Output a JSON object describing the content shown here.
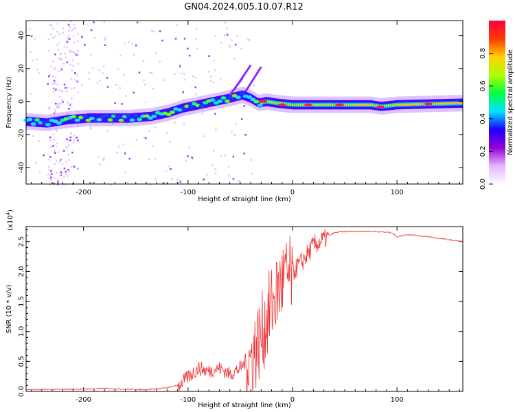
{
  "title": "GN04.2024.005.10.07.R12",
  "chart_data": [
    {
      "type": "heatmap",
      "xlabel": "Height of straight line (km)",
      "ylabel": "Frequency (Hz)",
      "xlim": [
        -255,
        163
      ],
      "ylim": [
        -50,
        49
      ],
      "xticks": [
        -200,
        -100,
        0,
        100
      ],
      "yticks": [
        -40,
        -20,
        0,
        20,
        40
      ],
      "colorbar": {
        "label": "Normalized spectral amplitude",
        "ticks": [
          "0.0",
          "0.2",
          "0.4",
          "0.6",
          "0.8"
        ],
        "colors": [
          "#ffffff",
          "#e6b3ff",
          "#9400d3",
          "#1a00ff",
          "#00e5ff",
          "#00ff40",
          "#b0ff00",
          "#ffd000",
          "#ff3a00",
          "#ff0040"
        ]
      },
      "ridge": [
        {
          "x": -255,
          "y": -12
        },
        {
          "x": -235,
          "y": -13
        },
        {
          "x": -215,
          "y": -11
        },
        {
          "x": -195,
          "y": -10
        },
        {
          "x": -175,
          "y": -10
        },
        {
          "x": -155,
          "y": -10
        },
        {
          "x": -135,
          "y": -9
        },
        {
          "x": -120,
          "y": -7
        },
        {
          "x": -105,
          "y": -4
        },
        {
          "x": -90,
          "y": -2
        },
        {
          "x": -75,
          "y": 0
        },
        {
          "x": -60,
          "y": 2
        },
        {
          "x": -48,
          "y": 4
        },
        {
          "x": -40,
          "y": 2
        },
        {
          "x": -32,
          "y": -1
        },
        {
          "x": -25,
          "y": 0
        },
        {
          "x": -15,
          "y": -1
        },
        {
          "x": 0,
          "y": -2
        },
        {
          "x": 40,
          "y": -2
        },
        {
          "x": 75,
          "y": -2
        },
        {
          "x": 85,
          "y": -3
        },
        {
          "x": 100,
          "y": -2
        },
        {
          "x": 130,
          "y": -1.5
        },
        {
          "x": 163,
          "y": -1
        }
      ]
    },
    {
      "type": "line",
      "xlabel": "Height of straight line (km)",
      "ylabel": "SNR (10 * v/v)",
      "yscale_label": "(x10",
      "yscale_exp": "4",
      "yscale_close": ")",
      "xlim": [
        -255,
        163
      ],
      "ylim": [
        0,
        2.75
      ],
      "xticks": [
        -200,
        -100,
        0,
        100
      ],
      "yticks": [
        "0.0",
        "0.5",
        "1.0",
        "1.5",
        "2.0",
        "2.5"
      ],
      "color": "#ee3333",
      "series": [
        {
          "x": [
            -255,
            -200,
            -180,
            -160,
            -140,
            -120,
            -110,
            -100,
            -90,
            -80,
            -70,
            -60,
            -50,
            -40,
            -30,
            -20,
            -10,
            0,
            10,
            20,
            30,
            40,
            50,
            60,
            80,
            95,
            100,
            110,
            130,
            163
          ],
          "y": [
            0.03,
            0.04,
            0.05,
            0.04,
            0.03,
            0.06,
            0.1,
            0.25,
            0.4,
            0.35,
            0.4,
            0.3,
            0.4,
            0.6,
            1.0,
            1.5,
            1.9,
            2.0,
            2.2,
            2.45,
            2.55,
            2.65,
            2.67,
            2.67,
            2.67,
            2.65,
            2.58,
            2.62,
            2.58,
            2.5
          ]
        }
      ]
    }
  ]
}
